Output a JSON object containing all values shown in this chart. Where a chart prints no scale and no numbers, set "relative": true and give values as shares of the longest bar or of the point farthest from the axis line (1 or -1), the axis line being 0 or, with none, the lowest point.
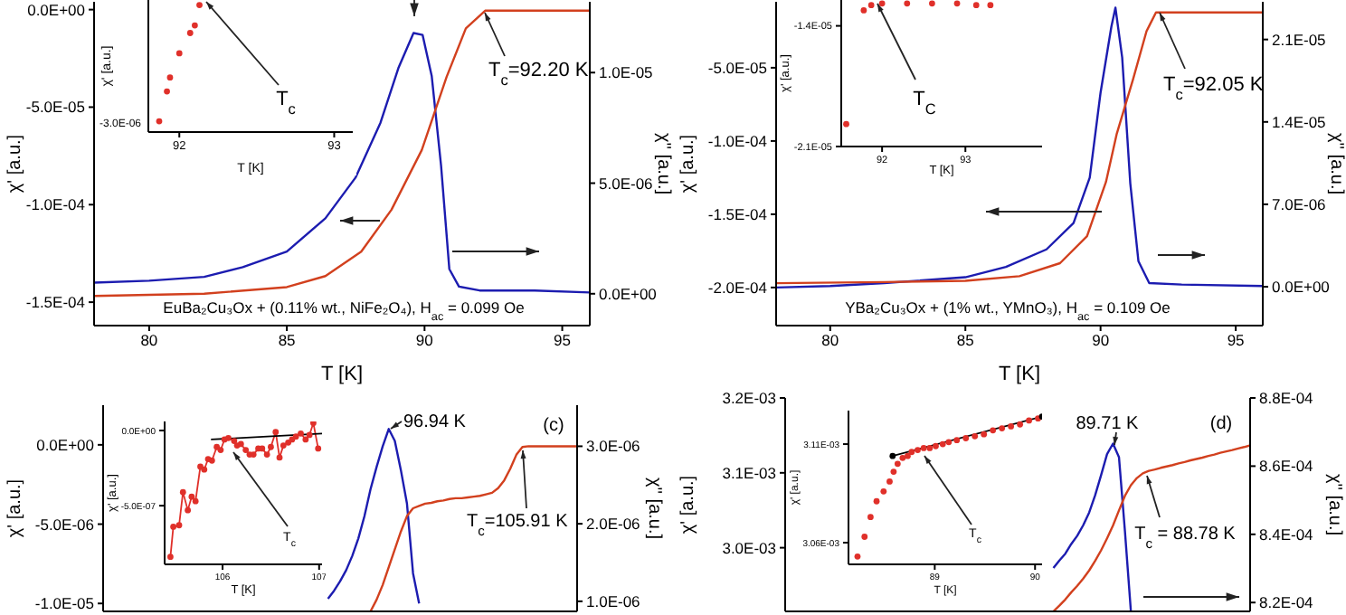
{
  "chart_data": [
    {
      "type": "line",
      "xlabel": "T [K]",
      "ylabel": "χ' [a.u.]",
      "y2label": "χ'' [a.u.]",
      "xlim": [
        78,
        96
      ],
      "xticks": [
        80,
        85,
        90,
        95
      ],
      "ylim": [
        -0.000162,
        4e-06
      ],
      "yticks": [
        {
          "value": 0,
          "label": "0.0E+00"
        },
        {
          "value": -5e-05,
          "label": "-5.0E-05"
        },
        {
          "value": -0.0001,
          "label": "-1.0E-04"
        },
        {
          "value": -0.00015,
          "label": "-1.5E-04"
        }
      ],
      "y2lim": [
        -1.44e-06,
        1.32e-05
      ],
      "y2ticks": [
        {
          "value": 0,
          "label": "0.0E+00"
        },
        {
          "value": 5e-06,
          "label": "5.0E-06"
        },
        {
          "value": 1e-05,
          "label": "1.0E-05"
        }
      ],
      "series": [
        {
          "color": "#1c1cb0",
          "x": [
            78,
            80,
            82,
            83.4,
            85,
            86.4,
            87.5,
            88.4,
            89.05,
            89.6,
            89.93,
            90.26,
            90.6,
            90.9,
            91.25,
            92,
            94,
            96
          ],
          "values": [
            -0.00014,
            -0.000139,
            -0.000137,
            -0.000132,
            -0.000124,
            -0.000107,
            -8.6e-05,
            -5.8e-05,
            -3e-05,
            -1.2e-05,
            -1.3e-05,
            -3.4e-05,
            -8e-05,
            -0.000133,
            -0.000142,
            -0.000144,
            -0.000144,
            -0.000145
          ]
        },
        {
          "color": "#d2401e",
          "axis": "y2",
          "x": [
            78,
            82,
            85,
            86.4,
            87.7,
            88.8,
            89.9,
            90.8,
            91.5,
            92.2,
            96
          ],
          "values": [
            -1e-07,
            0,
            3e-07,
            8e-07,
            1.9e-06,
            3.8e-06,
            6.5e-06,
            9.8e-06,
            1.2e-05,
            1.28e-05,
            1.28e-05
          ]
        }
      ],
      "annotations": [
        "T$_{c}$=92.20 K",
        "EuBa₂Cu₃Ox + (0.11% wt., NiFe₂O₄), H$_{ac}$ = 0.099 Oe"
      ]
    },
    {
      "type": "scatter",
      "relative": true,
      "marker": "circle",
      "xlabel": "T [K]",
      "ylabel": "χ' [a.u.]",
      "xlim": [
        91.8,
        93.12
      ],
      "xticks": [
        92,
        93
      ],
      "series": [
        {
          "color": "#e0302a",
          "x": [
            91.87,
            91.92,
            91.94,
            92.0,
            92.07,
            92.1,
            92.13
          ],
          "values": [
            0.085,
            0.32,
            0.43,
            0.62,
            0.78,
            0.84,
            1
          ]
        }
      ],
      "annotations": [
        "T$_{c}$",
        "-3.0E-06"
      ]
    },
    {
      "type": "line",
      "xlabel": "T [K]",
      "ylabel": "χ' [a.u.]",
      "y2label": "χ'' [a.u.]",
      "xlim": [
        78,
        96
      ],
      "xticks": [
        80,
        85,
        90,
        95
      ],
      "ylim": [
        -0.000226,
        -5e-06
      ],
      "yticks": [
        {
          "value": -5e-05,
          "label": "-5.0E-05"
        },
        {
          "value": -0.0001,
          "label": "-1.0E-04"
        },
        {
          "value": -0.00015,
          "label": "-1.5E-04"
        },
        {
          "value": -0.0002,
          "label": "-2.0E-04"
        }
      ],
      "y2lim": [
        -3.3e-06,
        2.42e-05
      ],
      "y2ticks": [
        {
          "value": 0,
          "label": "0.0E+00"
        },
        {
          "value": 7e-06,
          "label": "7.0E-06"
        },
        {
          "value": 1.4e-05,
          "label": "1.4E-05"
        },
        {
          "value": 2.1e-05,
          "label": "2.1E-05"
        }
      ],
      "series": [
        {
          "color": "#1c1cb0",
          "x": [
            78,
            80,
            82,
            85,
            86.5,
            88,
            89,
            89.6,
            90,
            90.4,
            90.55,
            90.8,
            91.1,
            91.4,
            91.8,
            93,
            96
          ],
          "values": [
            -0.0002,
            -0.000199,
            -0.000197,
            -0.000193,
            -0.000186,
            -0.000174,
            -0.000156,
            -0.000125,
            -6.7e-05,
            -2.2e-05,
            -9e-06,
            -4.3e-05,
            -0.000129,
            -0.000182,
            -0.000197,
            -0.000198,
            -0.000199
          ]
        },
        {
          "color": "#d2401e",
          "axis": "y2",
          "x": [
            78,
            82,
            85,
            87,
            88.5,
            89.5,
            90.2,
            90.6,
            91.2,
            91.7,
            92.05,
            96
          ],
          "values": [
            3e-07,
            4e-07,
            5e-07,
            9e-07,
            2e-06,
            4.3e-06,
            8.9e-06,
            1.3e-05,
            1.76e-05,
            2.17e-05,
            2.33e-05,
            2.33e-05
          ]
        }
      ],
      "annotations": [
        "T$_{c}$=92.05 K",
        "YBa₂Cu₃Ox + (1% wt., YMnO₃), H$_{ac}$ = 0.109 Oe"
      ]
    },
    {
      "type": "scatter",
      "marker": "circle",
      "xlabel": "T [K]",
      "ylabel": "χ' [a.u.]",
      "xlim": [
        91.51,
        93.92
      ],
      "xticks": [
        92,
        93
      ],
      "ylim": [
        -2.1e-05,
        -1.25e-05
      ],
      "yticks": [
        {
          "value": -1.4e-05,
          "label": "-1.4E-05"
        },
        {
          "value": -2.1e-05,
          "label": "-2.1E-05"
        }
      ],
      "series": [
        {
          "color": "#e0302a",
          "x": [
            91.57,
            91.78,
            91.87,
            92.0,
            92.3,
            92.6,
            92.9,
            93.13,
            93.3
          ],
          "values": [
            -1.97e-05,
            -1.31e-05,
            -1.28e-05,
            -1.27e-05,
            -1.27e-05,
            -1.27e-05,
            -1.27e-05,
            -1.28e-05,
            -1.28e-05
          ]
        }
      ],
      "annotations": [
        "T$_{C}$"
      ]
    },
    {
      "type": "line",
      "tick_labels": "y",
      "categories": [
        null,
        null,
        null,
        null,
        null,
        null,
        null,
        null,
        null,
        null,
        null,
        null,
        null,
        null,
        null,
        null,
        null,
        null,
        null,
        null,
        null,
        null,
        null,
        null,
        null,
        null,
        null,
        null,
        null,
        null,
        null,
        null,
        null,
        null,
        null,
        null,
        null,
        null,
        null,
        null,
        null,
        null,
        null,
        null,
        null,
        null,
        null,
        null,
        null,
        null,
        null,
        null,
        null,
        null,
        null,
        null,
        null,
        null,
        null,
        null,
        null,
        null,
        null,
        null,
        null,
        null,
        null,
        null,
        null,
        null,
        null,
        null,
        null,
        null,
        null,
        null,
        null,
        null,
        null
      ],
      "ylabel": "χ' [a.u.]",
      "y2label": "χ'' [a.u.]",
      "ylim": [
        -1.05e-05,
        2.5e-06
      ],
      "yticks": [
        {
          "value": 0,
          "label": "0.0E+00"
        },
        {
          "value": -5e-06,
          "label": "-5.0E-06"
        },
        {
          "value": -1e-05,
          "label": "-1.0E-05"
        }
      ],
      "y2lim": [
        8.7e-07,
        3.53e-06
      ],
      "y2ticks": [
        {
          "value": 3e-06,
          "label": "3.0E-06"
        },
        {
          "value": 2e-06,
          "label": "2.0E-06"
        },
        {
          "value": 1e-06,
          "label": "1.0E-06"
        }
      ],
      "series": [
        {
          "color": "#1c1cb0",
          "values": [
            null,
            null,
            null,
            null,
            null,
            null,
            null,
            null,
            null,
            null,
            null,
            null,
            null,
            null,
            null,
            null,
            null,
            null,
            null,
            null,
            null,
            null,
            null,
            null,
            null,
            null,
            null,
            null,
            null,
            null,
            null,
            null,
            null,
            null,
            null,
            null,
            null,
            -9.7e-06,
            -9.2e-06,
            -8.6e-06,
            -7.9e-06,
            -7e-06,
            -5.9e-06,
            -4.5e-06,
            -2.8e-06,
            -1.4e-06,
            -1e-07,
            1e-06,
            2.5e-07,
            -1.6e-06,
            -3.7e-06,
            -8.1e-06,
            -1e-05,
            null,
            null,
            null,
            null,
            null,
            null,
            null,
            null,
            null,
            null,
            null,
            null,
            null,
            null,
            null,
            null,
            null,
            null,
            null,
            null,
            null,
            null,
            null,
            null,
            null,
            null
          ]
        },
        {
          "color": "#d2401e",
          "axis": "y2",
          "values": [
            null,
            null,
            null,
            null,
            null,
            null,
            null,
            null,
            null,
            null,
            null,
            null,
            null,
            null,
            null,
            null,
            null,
            null,
            null,
            null,
            null,
            null,
            null,
            null,
            null,
            null,
            null,
            null,
            null,
            null,
            null,
            null,
            null,
            null,
            null,
            null,
            null,
            null,
            null,
            null,
            null,
            null,
            null,
            null,
            8.7e-07,
            1.02e-06,
            1.21e-06,
            1.44e-06,
            1.67e-06,
            1.9e-06,
            2.1e-06,
            2.2e-06,
            2.23e-06,
            2.26e-06,
            2.27e-06,
            2.29e-06,
            2.3e-06,
            2.32e-06,
            2.33e-06,
            2.33e-06,
            2.34e-06,
            2.35e-06,
            2.36e-06,
            2.38e-06,
            2.4e-06,
            2.46e-06,
            2.56e-06,
            2.71e-06,
            2.89e-06,
            2.99e-06,
            3e-06,
            3e-06,
            3e-06,
            3e-06,
            3e-06,
            3e-06,
            3e-06,
            3e-06,
            3e-06
          ]
        }
      ],
      "annotations": [
        "96.94 K",
        "T$_{c}$=105.91 K",
        "(c)"
      ]
    },
    {
      "type": "line",
      "marker": "circle",
      "xlabel": "T [K]",
      "ylabel": "χ' [a.u.]",
      "xlim": [
        105.4,
        107.03
      ],
      "xticks": [
        106,
        107
      ],
      "ylim": [
        -8.9e-07,
        6e-08
      ],
      "yticks": [
        {
          "value": 0,
          "label": "0.0E+00"
        },
        {
          "value": -5e-07,
          "label": "-5.0E-07"
        }
      ],
      "series": [
        {
          "color": "#e0302a",
          "x": [
            105.46,
            105.49,
            105.55,
            105.59,
            105.64,
            105.68,
            105.72,
            105.77,
            105.81,
            105.85,
            105.89,
            105.94,
            105.98,
            106.02,
            106.06,
            106.12,
            106.15,
            106.19,
            106.24,
            106.28,
            106.32,
            106.37,
            106.41,
            106.46,
            106.5,
            106.55,
            106.59,
            106.63,
            106.68,
            106.72,
            106.76,
            106.81,
            106.86,
            106.9,
            106.94,
            106.99
          ],
          "values": [
            -8.4e-07,
            -6.4e-07,
            -6.3e-07,
            -4.1e-07,
            -5.3e-07,
            -4.4e-07,
            -4.7e-07,
            -2.4e-07,
            -2.6e-07,
            -1.9e-07,
            -2e-07,
            -1.1e-07,
            -1.3e-07,
            -6e-08,
            -5e-08,
            -7e-08,
            -1e-07,
            -9e-08,
            -1.3e-07,
            -1.6e-07,
            -1.6e-07,
            -1.2e-07,
            -1.2e-07,
            -1.6e-07,
            -1.1e-07,
            -1e-08,
            -1.8e-07,
            -1e-07,
            -8e-08,
            -6e-08,
            -4e-08,
            -2e-08,
            -6e-08,
            -3e-08,
            5e-08,
            -1.2e-07
          ]
        },
        {
          "color": "#000000",
          "marker": "none",
          "x": [
            105.88,
            107.03
          ],
          "values": [
            -6e-08,
            -2e-08
          ]
        }
      ],
      "annotations": [
        "T$_{c}$"
      ]
    },
    {
      "type": "line",
      "tick_labels": "y",
      "categories": [
        null,
        null,
        null,
        null,
        null,
        null,
        null,
        null,
        null,
        null,
        null,
        null,
        null,
        null,
        null,
        null,
        null,
        null,
        null,
        null,
        null,
        null,
        null,
        null,
        null,
        null,
        null,
        null,
        null,
        null,
        null,
        null,
        null,
        null,
        null,
        null,
        null,
        null,
        null,
        null,
        null,
        null,
        null,
        null,
        null,
        null,
        null,
        null,
        null,
        null,
        null,
        null,
        null,
        null,
        null,
        null,
        null,
        null,
        null,
        null,
        null,
        null,
        null,
        null,
        null,
        null,
        null,
        null,
        null,
        null,
        null,
        null,
        null,
        null,
        null,
        null,
        null,
        null,
        null
      ],
      "ylabel": "χ' [a.u.]",
      "y2label": "χ'' [a.u.]",
      "ylim": [
        0.002915,
        0.0032
      ],
      "yticks": [
        {
          "value": 0.0032,
          "label": "3.2E-03"
        },
        {
          "value": 0.0031,
          "label": "3.1E-03"
        },
        {
          "value": 0.003,
          "label": "3.0E-03"
        }
      ],
      "y2lim": [
        0.0008174,
        0.00088
      ],
      "y2ticks": [
        {
          "value": 0.00088,
          "label": "8.8E-04"
        },
        {
          "value": 0.00086,
          "label": "8.6E-04"
        },
        {
          "value": 0.00084,
          "label": "8.4E-04"
        },
        {
          "value": 0.00082,
          "label": "8.2E-04"
        }
      ],
      "series": [
        {
          "color": "#1c1cb0",
          "values": [
            null,
            null,
            null,
            null,
            null,
            null,
            null,
            null,
            null,
            null,
            null,
            null,
            null,
            null,
            null,
            null,
            null,
            null,
            null,
            null,
            null,
            null,
            null,
            null,
            null,
            null,
            null,
            null,
            null,
            null,
            null,
            null,
            null,
            null,
            null,
            null,
            null,
            null,
            null,
            null,
            null,
            null,
            null,
            null,
            null,
            0.002973,
            0.002983,
            0.002992,
            0.003005,
            0.003016,
            0.00303,
            0.003047,
            0.00307,
            0.003097,
            0.003125,
            0.003139,
            0.003121,
            0.003022,
            0.002915,
            null,
            null,
            null,
            null,
            null,
            null,
            null,
            null,
            null,
            null,
            null,
            null,
            null,
            null,
            null,
            null,
            null,
            null,
            null,
            null
          ]
        },
        {
          "color": "#d2401e",
          "axis": "y2",
          "values": [
            null,
            null,
            null,
            null,
            null,
            null,
            null,
            null,
            null,
            null,
            null,
            null,
            null,
            null,
            null,
            null,
            null,
            null,
            null,
            null,
            null,
            null,
            null,
            null,
            null,
            null,
            null,
            null,
            null,
            null,
            null,
            null,
            null,
            null,
            null,
            null,
            null,
            null,
            null,
            null,
            null,
            null,
            null,
            null,
            null,
            0.0008174,
            0.0008191,
            0.0008209,
            0.000823,
            0.0008249,
            0.000827,
            0.0008294,
            0.0008322,
            0.0008353,
            0.0008388,
            0.0008426,
            0.000847,
            0.0008513,
            0.0008544,
            0.0008565,
            0.0008579,
            0.0008586,
            0.000859,
            0.0008595,
            0.0008599,
            0.0008603,
            0.0008608,
            0.0008612,
            0.0008617,
            0.0008621,
            0.0008625,
            0.000863,
            0.0008634,
            0.0008639,
            0.0008643,
            0.0008647,
            0.0008652,
            0.0008656,
            0.0008661
          ]
        }
      ],
      "annotations": [
        "89.71 K",
        "T$_{c}$ = 88.78 K",
        "(d)"
      ]
    },
    {
      "type": "scatter",
      "marker": "circle",
      "xlabel": "T [K]",
      "ylabel": "χ' [a.u.]",
      "xlim": [
        88.14,
        90.07
      ],
      "xticks": [
        89,
        90
      ],
      "ylim": [
        0.003049,
        0.003127
      ],
      "yticks": [
        {
          "value": 0.00311,
          "label": "3.11E-03"
        },
        {
          "value": 0.00306,
          "label": "3.06E-03"
        }
      ],
      "series": [
        {
          "color": "#e0302a",
          "x": [
            88.23,
            88.3,
            88.36,
            88.42,
            88.49,
            88.55,
            88.59,
            88.63,
            88.68,
            88.73,
            88.77,
            88.83,
            88.89,
            88.95,
            89.01,
            89.08,
            89.14,
            89.22,
            89.31,
            89.4,
            89.49,
            89.58,
            89.67,
            89.76,
            89.85,
            89.94,
            90.03
          ],
          "values": [
            0.003053,
            0.003063,
            0.003073,
            0.003081,
            0.003086,
            0.003091,
            0.003096,
            0.0031,
            0.003103,
            0.003104,
            0.003106,
            0.003107,
            0.003108,
            0.003108,
            0.003109,
            0.00311,
            0.003111,
            0.003112,
            0.003113,
            0.003114,
            0.003115,
            0.003117,
            0.003118,
            0.003119,
            0.00312,
            0.003122,
            0.003123
          ]
        },
        {
          "color": "#000000",
          "type": "line",
          "x": [
            88.58,
            90.07
          ],
          "values": [
            0.003104,
            0.003124
          ]
        }
      ],
      "annotations": [
        "T$_{c}$"
      ]
    }
  ]
}
